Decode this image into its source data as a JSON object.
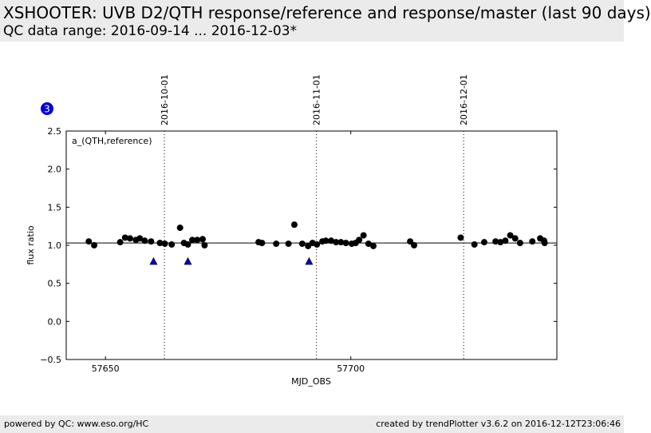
{
  "header": {
    "title": "XSHOOTER: UVB D2/QTH response/reference and response/master (last 90 days)",
    "subtitle": "QC data range: 2016-09-14 ... 2016-12-03*"
  },
  "footer": {
    "left": "powered by QC: www.eso.org/HC",
    "right": "created by trendPlotter v3.6.2 on 2016-12-12T23:06:46"
  },
  "badge": "3",
  "colors": {
    "marker": "#000000",
    "triangle": "#0000cc",
    "badge": "#0000dd"
  },
  "chart_data": {
    "type": "scatter",
    "xlabel": "MJD_OBS",
    "ylabel": "flux ratio",
    "annotation": "a_(QTH,reference)",
    "xlim": [
      57642,
      57742
    ],
    "ylim": [
      -0.5,
      2.5
    ],
    "xticks": [
      57650,
      57700
    ],
    "yticks": [
      -0.5,
      0.0,
      0.5,
      1.0,
      1.5,
      2.0,
      2.5
    ],
    "ytick_labels": [
      "−0.5",
      "0.0",
      "0.5",
      "1.0",
      "1.5",
      "2.0",
      "2.5"
    ],
    "reference_line": 1.03,
    "date_markers": [
      {
        "label": "2016-10-01",
        "x": 57662
      },
      {
        "label": "2016-11-01",
        "x": 57693
      },
      {
        "label": "2016-12-01",
        "x": 57723
      }
    ],
    "series": [
      {
        "marker": "circle",
        "x": [
          57646.6,
          57647.7,
          57653.0,
          57654.0,
          57655.0,
          57656.2,
          57657.0,
          57658.0,
          57659.3,
          57661.1,
          57662.1,
          57663.5,
          57665.2,
          57666.0,
          57666.8,
          57667.7,
          57668.7,
          57669.8,
          57670.2,
          57681.2,
          57681.9,
          57684.8,
          57687.3,
          57688.5,
          57690.1,
          57691.3,
          57692.2,
          57693.1,
          57694.2,
          57694.9,
          57696.0,
          57697.0,
          57698.0,
          57699.0,
          57700.2,
          57701.0,
          57701.7,
          57702.6,
          57703.6,
          57704.6,
          57712.1,
          57712.9,
          57722.4,
          57725.2,
          57727.2,
          57729.5,
          57730.5,
          57731.5,
          57732.5,
          57733.5,
          57734.5,
          57737.0,
          57738.6,
          57739.4,
          57739.5
        ],
        "y": [
          1.05,
          1.0,
          1.04,
          1.1,
          1.09,
          1.07,
          1.09,
          1.06,
          1.05,
          1.03,
          1.02,
          1.01,
          1.23,
          1.03,
          1.01,
          1.07,
          1.07,
          1.08,
          1.0,
          1.04,
          1.03,
          1.02,
          1.02,
          1.27,
          1.02,
          0.99,
          1.03,
          1.01,
          1.05,
          1.06,
          1.06,
          1.04,
          1.04,
          1.03,
          1.02,
          1.03,
          1.07,
          1.13,
          1.02,
          0.99,
          1.05,
          1.0,
          1.1,
          1.01,
          1.04,
          1.05,
          1.04,
          1.06,
          1.13,
          1.09,
          1.03,
          1.05,
          1.09,
          1.06,
          1.03
        ]
      },
      {
        "marker": "triangle",
        "x": [
          57659.8,
          57666.8,
          57691.5
        ],
        "y": [
          0.79,
          0.79,
          0.79
        ]
      }
    ]
  }
}
